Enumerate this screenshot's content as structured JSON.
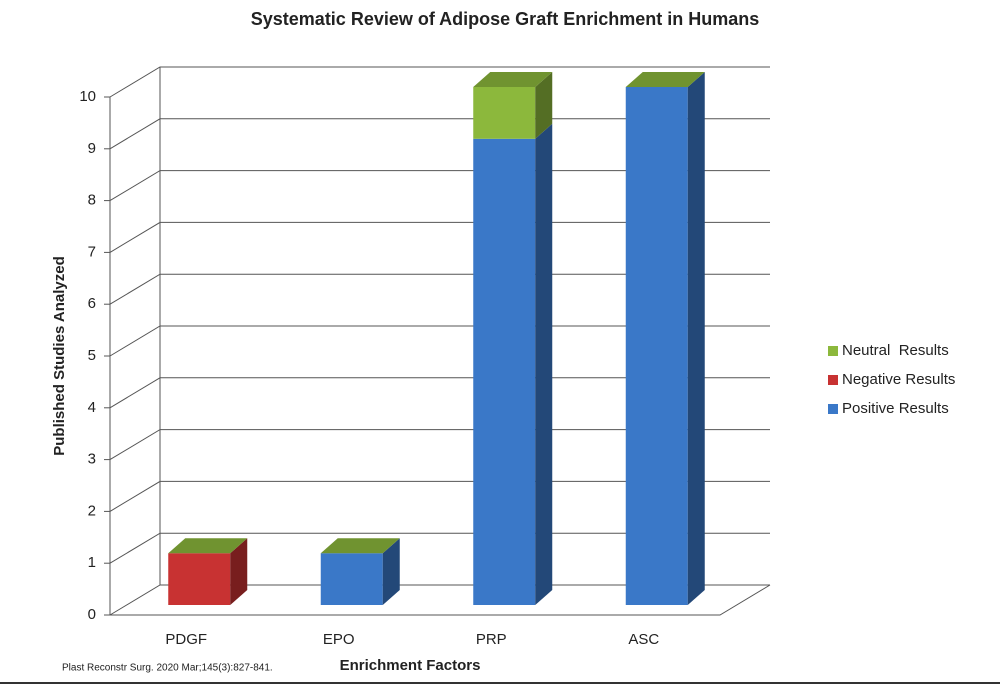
{
  "chart_data": {
    "type": "bar3d-stacked",
    "title": "Systematic Review of Adipose Graft Enrichment in Humans",
    "x_label": "Enrichment Factors",
    "y_label": "Published Studies Analyzed",
    "source": "Plast Reconstr Surg. 2020 Mar;145(3):827-841.",
    "categories": [
      "PDGF",
      "EPO",
      "PRP",
      "ASC"
    ],
    "series": [
      {
        "name": "Positive Results",
        "color": "#3a78c8",
        "values": [
          0,
          1,
          9,
          10
        ]
      },
      {
        "name": "Negative Results",
        "color": "#c83232",
        "values": [
          1,
          0,
          0,
          0
        ]
      },
      {
        "name": "Neutral  Results",
        "color": "#8cb83c",
        "values": [
          0,
          0,
          1,
          0
        ]
      }
    ],
    "ylim": [
      0,
      10
    ],
    "yticks": [
      0,
      1,
      2,
      3,
      4,
      5,
      6,
      7,
      8,
      9,
      10
    ],
    "grid": true
  }
}
